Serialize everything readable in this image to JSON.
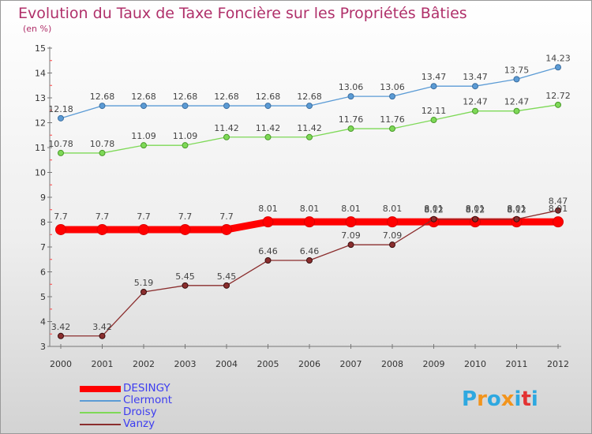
{
  "chart_data": {
    "type": "line",
    "title": "Evolution du Taux de Taxe Foncière sur les Propriétés Bâties",
    "subtitle": "(en %)",
    "xlabel": "",
    "ylabel": "",
    "ylim": [
      3,
      15
    ],
    "yticks": [
      "3",
      "4",
      "5",
      "6",
      "7",
      "8",
      "9",
      "10",
      "11",
      "12",
      "13",
      "14",
      "15"
    ],
    "x": [
      "2000",
      "2001",
      "2002",
      "2003",
      "2004",
      "2005",
      "2006",
      "2007",
      "2008",
      "2009",
      "2010",
      "2011",
      "2012"
    ],
    "grid": false,
    "legend_position": "bottom-left",
    "series": [
      {
        "name": "DESINGY",
        "color": "#ff0000",
        "values": [
          7.7,
          7.7,
          7.7,
          7.7,
          7.7,
          8.01,
          8.01,
          8.01,
          8.01,
          8.01,
          8.01,
          8.01,
          8.01
        ],
        "labels": [
          "7.7",
          "7.7",
          "7.7",
          "7.7",
          "7.7",
          "8.01",
          "8.01",
          "8.01",
          "8.01",
          "8.01",
          "8.01",
          "8.01",
          "8.01"
        ]
      },
      {
        "name": "Clermont",
        "color": "#5b9bd5",
        "values": [
          12.18,
          12.68,
          12.68,
          12.68,
          12.68,
          12.68,
          12.68,
          13.06,
          13.06,
          13.47,
          13.47,
          13.75,
          14.23
        ],
        "labels": [
          "12.18",
          "12.68",
          "12.68",
          "12.68",
          "12.68",
          "12.68",
          "12.68",
          "13.06",
          "13.06",
          "13.47",
          "13.47",
          "13.75",
          "14.23"
        ]
      },
      {
        "name": "Droisy",
        "color": "#7ed957",
        "values": [
          10.78,
          10.78,
          11.09,
          11.09,
          11.42,
          11.42,
          11.42,
          11.76,
          11.76,
          12.11,
          12.47,
          12.47,
          12.72
        ],
        "labels": [
          "10.78",
          "10.78",
          "11.09",
          "11.09",
          "11.42",
          "11.42",
          "11.42",
          "11.76",
          "11.76",
          "12.11",
          "12.47",
          "12.47",
          "12.72"
        ]
      },
      {
        "name": "Vanzy",
        "color": "#8b2e2e",
        "values": [
          3.42,
          3.42,
          5.19,
          5.45,
          5.45,
          6.46,
          6.46,
          7.09,
          7.09,
          8.12,
          8.12,
          8.12,
          8.47
        ],
        "labels": [
          "3.42",
          "3.42",
          "5.19",
          "5.45",
          "5.45",
          "6.46",
          "6.46",
          "7.09",
          "7.09",
          "8.12",
          "8.12",
          "8.12",
          "8.47"
        ]
      }
    ]
  },
  "logo": {
    "text": "Proxiti",
    "letter_colors": [
      "#2ea8e0",
      "#f2941c",
      "#2ea8e0",
      "#f2941c",
      "#2ea8e0",
      "#e33232",
      "#2ea8e0"
    ]
  }
}
